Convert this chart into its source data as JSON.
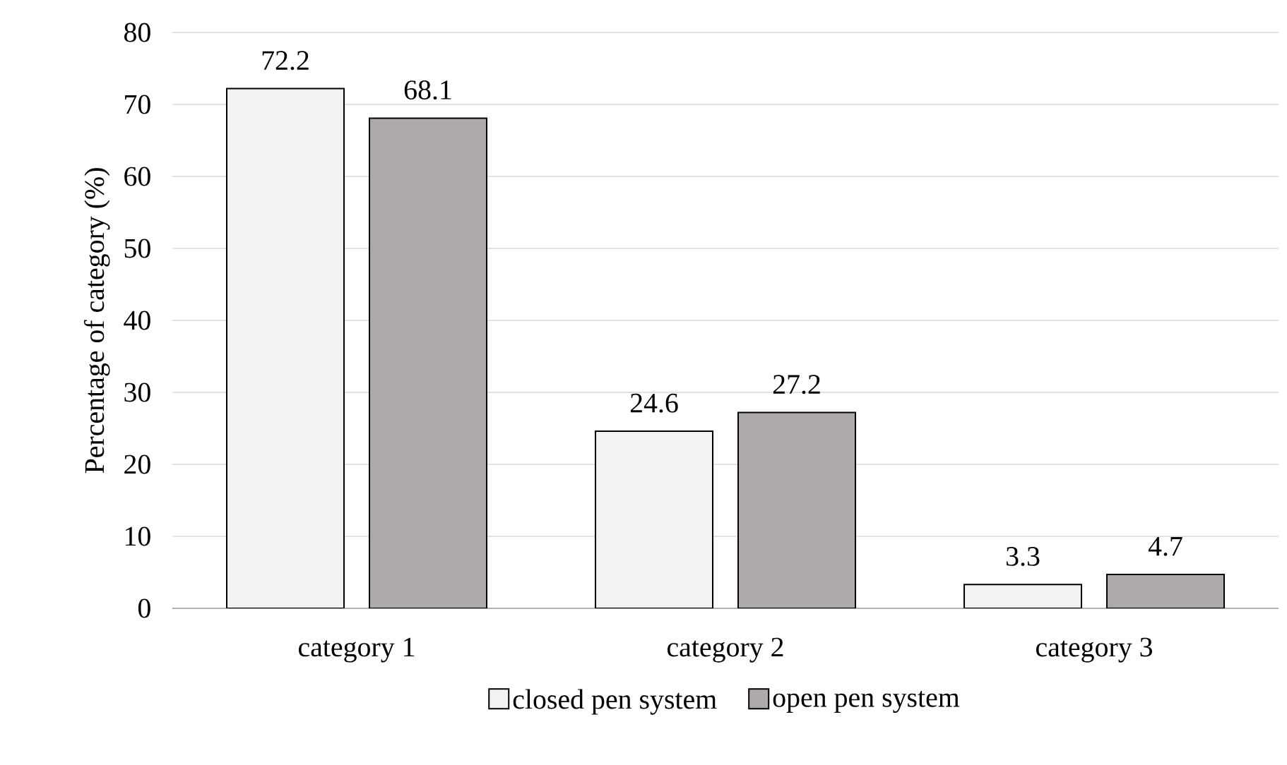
{
  "chart_data": {
    "type": "bar",
    "ylabel": "Percentage of category (%)",
    "categories": [
      "category 1",
      "category 2",
      "category 3"
    ],
    "series": [
      {
        "name": "closed pen system",
        "color": "#f2f2f2",
        "values": [
          72.2,
          24.6,
          3.3
        ]
      },
      {
        "name": "open pen system",
        "color": "#aeaaaa",
        "values": [
          68.1,
          27.2,
          4.7
        ]
      }
    ],
    "ylim": [
      0,
      80
    ],
    "yticks": [
      0,
      10,
      20,
      30,
      40,
      50,
      60,
      70,
      80
    ],
    "grid": "y",
    "legend": "bottom",
    "data_labels": true
  }
}
